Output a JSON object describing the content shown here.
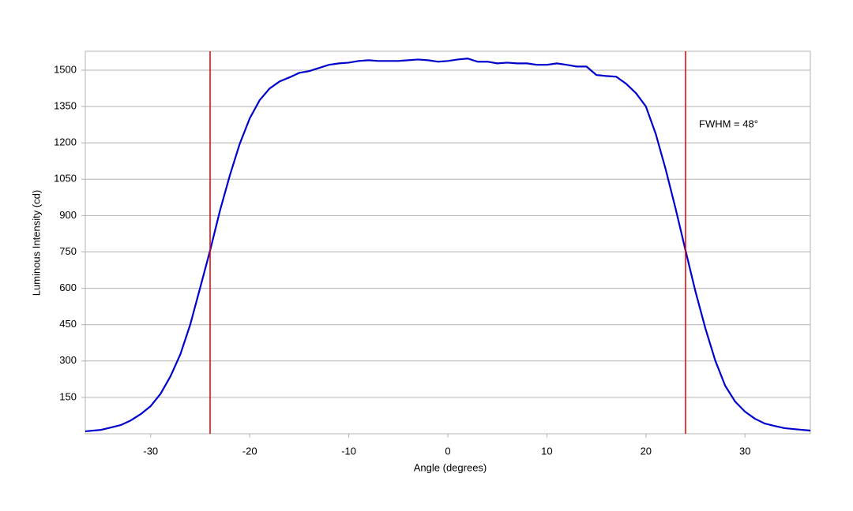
{
  "chart_data": {
    "type": "line",
    "x_label": "Angle (degrees)",
    "y_label": "Luminous Intensity (cd)",
    "annotation": "FWHM = 48°",
    "x": [
      -36.6,
      -35,
      -34,
      -33,
      -32,
      -31,
      -30,
      -29,
      -28,
      -27,
      -26,
      -25,
      -24,
      -23,
      -22,
      -21,
      -20,
      -19,
      -18,
      -17,
      -16,
      -15,
      -14,
      -13,
      -12,
      -11,
      -10,
      -9,
      -8,
      -7,
      -6,
      -5,
      -4,
      -3,
      -2,
      -1,
      0,
      1,
      2,
      3,
      4,
      5,
      6,
      7,
      8,
      9,
      10,
      11,
      12,
      13,
      14,
      15,
      16,
      17,
      18,
      19,
      20,
      21,
      22,
      23,
      24,
      25,
      26,
      27,
      28,
      29,
      30,
      31,
      32,
      33,
      34,
      35,
      36.6
    ],
    "series": [
      {
        "color": "#0000cc",
        "values": [
          10,
          16,
          26,
          36,
          55,
          81,
          114,
          165,
          237,
          328,
          451,
          603,
          756,
          921,
          1067,
          1197,
          1301,
          1376,
          1424,
          1453,
          1470,
          1489,
          1496,
          1509,
          1522,
          1528,
          1531,
          1538,
          1541,
          1538,
          1538,
          1538,
          1541,
          1544,
          1541,
          1535,
          1538,
          1544,
          1548,
          1535,
          1535,
          1528,
          1531,
          1528,
          1528,
          1522,
          1522,
          1528,
          1522,
          1515,
          1515,
          1480,
          1476,
          1473,
          1444,
          1405,
          1350,
          1236,
          1090,
          928,
          756,
          587,
          435,
          302,
          198,
          133,
          91,
          62,
          42,
          32,
          23,
          19,
          13
        ]
      }
    ],
    "vlines": [
      -24,
      24
    ],
    "vline_color": "#e00000",
    "xlim": [
      -36.6,
      36.6
    ],
    "ylim": [
      0,
      1578
    ],
    "xticks": [
      -30,
      -20,
      -10,
      0,
      10,
      20,
      30
    ],
    "yticks": [
      150,
      300,
      450,
      600,
      750,
      900,
      1050,
      1200,
      1350,
      1500
    ],
    "grid": true
  }
}
